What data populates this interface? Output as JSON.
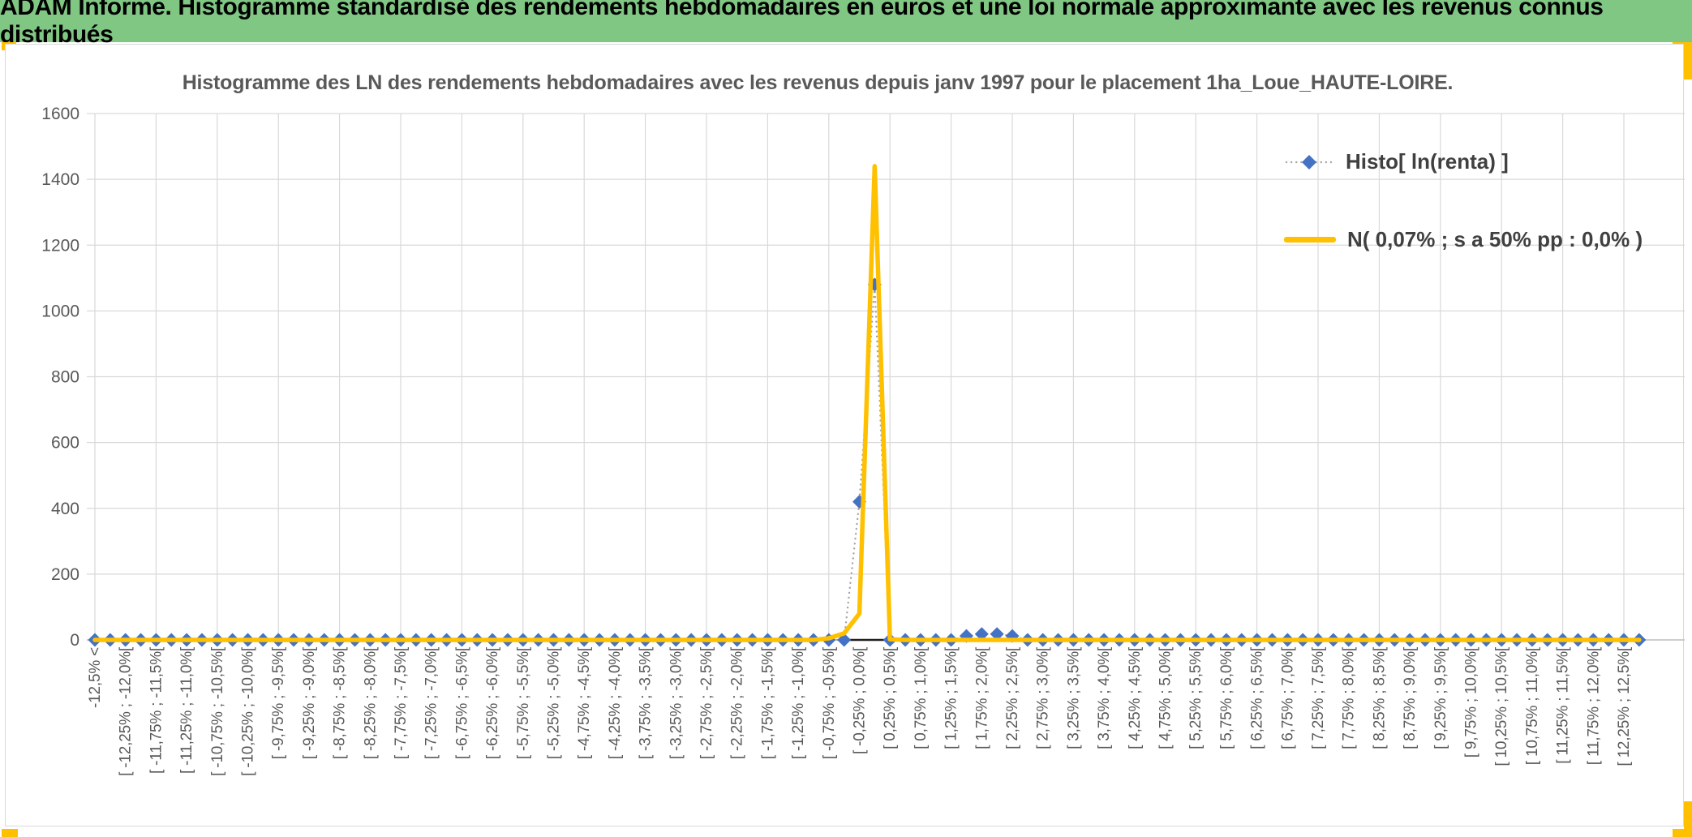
{
  "header": {
    "title": "ADAM Informe. Histogramme standardisé des rendements hebdomadaires en euros et une loi normale approximante avec les revenus connus distribués",
    "bg_color": "#81C784",
    "accent_color": "#FFC000"
  },
  "chart_data": {
    "type": "line",
    "title": "Histogramme des LN des rendements hebdomadaires avec les revenus depuis janv 1997 pour le placement 1ha_Loue_HAUTE-LOIRE.",
    "ylim": [
      0,
      1600
    ],
    "yticks": [
      0,
      200,
      400,
      600,
      800,
      1000,
      1200,
      1400,
      1600
    ],
    "grid_on": true,
    "grid_color": "#D9D9D9",
    "axis_color": "#BFBFBF",
    "bin_width_pct": 0.25,
    "bin_count": 102,
    "label_every": 2,
    "x_labels": [
      "-12,5% <",
      "[ -12,25% ; -12,0%[",
      "[ -11,75% ; -11,5%[",
      "[ -11,25% ; -11,0%[",
      "[ -10,75% ; -10,5%[",
      "[ -10,25% ; -10,0%[",
      "[ -9,75% ; -9,5%[",
      "[ -9,25% ; -9,0%[",
      "[ -8,75% ; -8,5%[",
      "[ -8,25% ; -8,0%[",
      "[ -7,75% ; -7,5%[",
      "[ -7,25% ; -7,0%[",
      "[ -6,75% ; -6,5%[",
      "[ -6,25% ; -6,0%[",
      "[ -5,75% ; -5,5%[",
      "[ -5,25% ; -5,0%[",
      "[ -4,75% ; -4,5%[",
      "[ -4,25% ; -4,0%[",
      "[ -3,75% ; -3,5%[",
      "[ -3,25% ; -3,0%[",
      "[ -2,75% ; -2,5%[",
      "[ -2,25% ; -2,0%[",
      "[ -1,75% ; -1,5%[",
      "[ -1,25% ; -1,0%[",
      "[ -0,75% ; -0,5%[",
      "[ -0,25% ; 0,0%[",
      "[ 0,25% ; 0,5%[",
      "[ 0,75% ; 1,0%[",
      "[ 1,25% ; 1,5%[",
      "[ 1,75% ; 2,0%[",
      "[ 2,25% ; 2,5%[",
      "[ 2,75% ; 3,0%[",
      "[ 3,25% ; 3,5%[",
      "[ 3,75% ; 4,0%[",
      "[ 4,25% ; 4,5%[",
      "[ 4,75% ; 5,0%[",
      "[ 5,25% ; 5,5%[",
      "[ 5,75% ; 6,0%[",
      "[ 6,25% ; 6,5%[",
      "[ 6,75% ; 7,0%[",
      "[ 7,25% ; 7,5%[",
      "[ 7,75% ; 8,0%[",
      "[ 8,25% ; 8,5%[",
      "[ 8,75% ; 9,0%[",
      "[ 9,25% ; 9,5%[",
      "[ 9,75% ; 10,0%[",
      "[ 10,25% ; 10,5%[",
      "[ 10,75% ; 11,0%[",
      "[ 11,25% ; 11,5%[",
      "[ 11,75% ; 12,0%[",
      "[ 12,25% ; 12,5%["
    ],
    "series": [
      {
        "name": "Histo[ ln(renta) ]",
        "line_color": "#A6A6A6",
        "line_style": "dotted",
        "marker": "diamond",
        "marker_color": "#4472C4",
        "default_value": 0,
        "points": [
          {
            "bin": 50,
            "value": 420
          },
          {
            "bin": 51,
            "value": 1080
          },
          {
            "bin": 57,
            "value": 12
          },
          {
            "bin": 58,
            "value": 18
          },
          {
            "bin": 59,
            "value": 18
          },
          {
            "bin": 60,
            "value": 12
          }
        ]
      },
      {
        "name": "N( 0,07% ; s a 50% pp : 0,0% )",
        "line_color": "#FFC000",
        "line_style": "solid",
        "marker": "none",
        "default_value": 0,
        "points": [
          {
            "bin": 48,
            "value": 5
          },
          {
            "bin": 49,
            "value": 20
          },
          {
            "bin": 50,
            "value": 80
          },
          {
            "bin": 51,
            "value": 1440
          },
          {
            "bin": 52,
            "value": 2
          }
        ]
      }
    ],
    "baseline_segment": {
      "from_bin": 49,
      "to_bin": 52,
      "value": 0,
      "color": "#1F1F1F"
    },
    "legend_position": "inside top-right"
  }
}
